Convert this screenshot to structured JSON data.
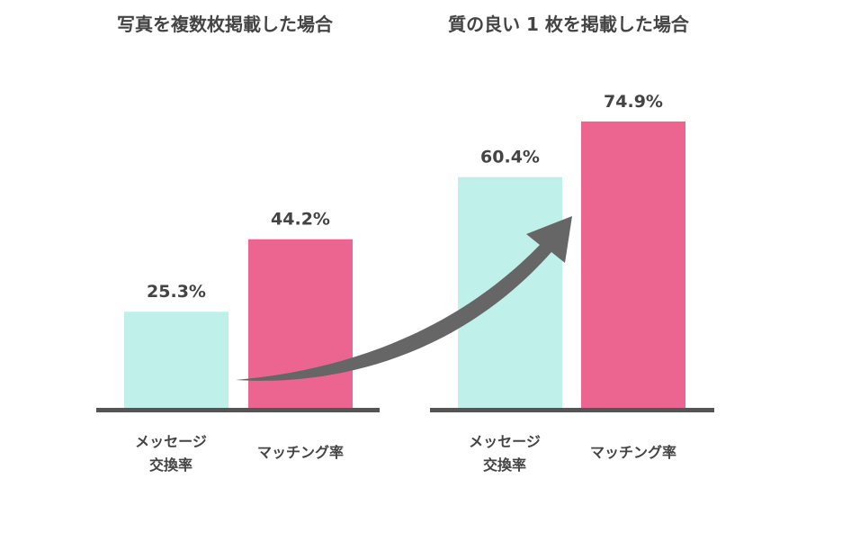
{
  "chart_data": [
    {
      "type": "bar",
      "title": "写真を複数枚掲載した場合",
      "categories": [
        "メッセージ\n交換率",
        "マッチング率"
      ],
      "values": [
        25.3,
        44.2
      ],
      "value_labels": [
        "25.3%",
        "44.2%"
      ],
      "ylim": [
        0,
        80
      ],
      "colors": [
        "#bff0ea",
        "#ec6590"
      ]
    },
    {
      "type": "bar",
      "title": "質の良い 1 枚を掲載した場合",
      "categories": [
        "メッセージ\n交換率",
        "マッチング率"
      ],
      "values": [
        60.4,
        74.9
      ],
      "value_labels": [
        "60.4%",
        "74.9%"
      ],
      "ylim": [
        0,
        80
      ],
      "colors": [
        "#bff0ea",
        "#ec6590"
      ]
    }
  ],
  "style": {
    "baseline_color": "#555555",
    "arrow_color": "#666666"
  }
}
